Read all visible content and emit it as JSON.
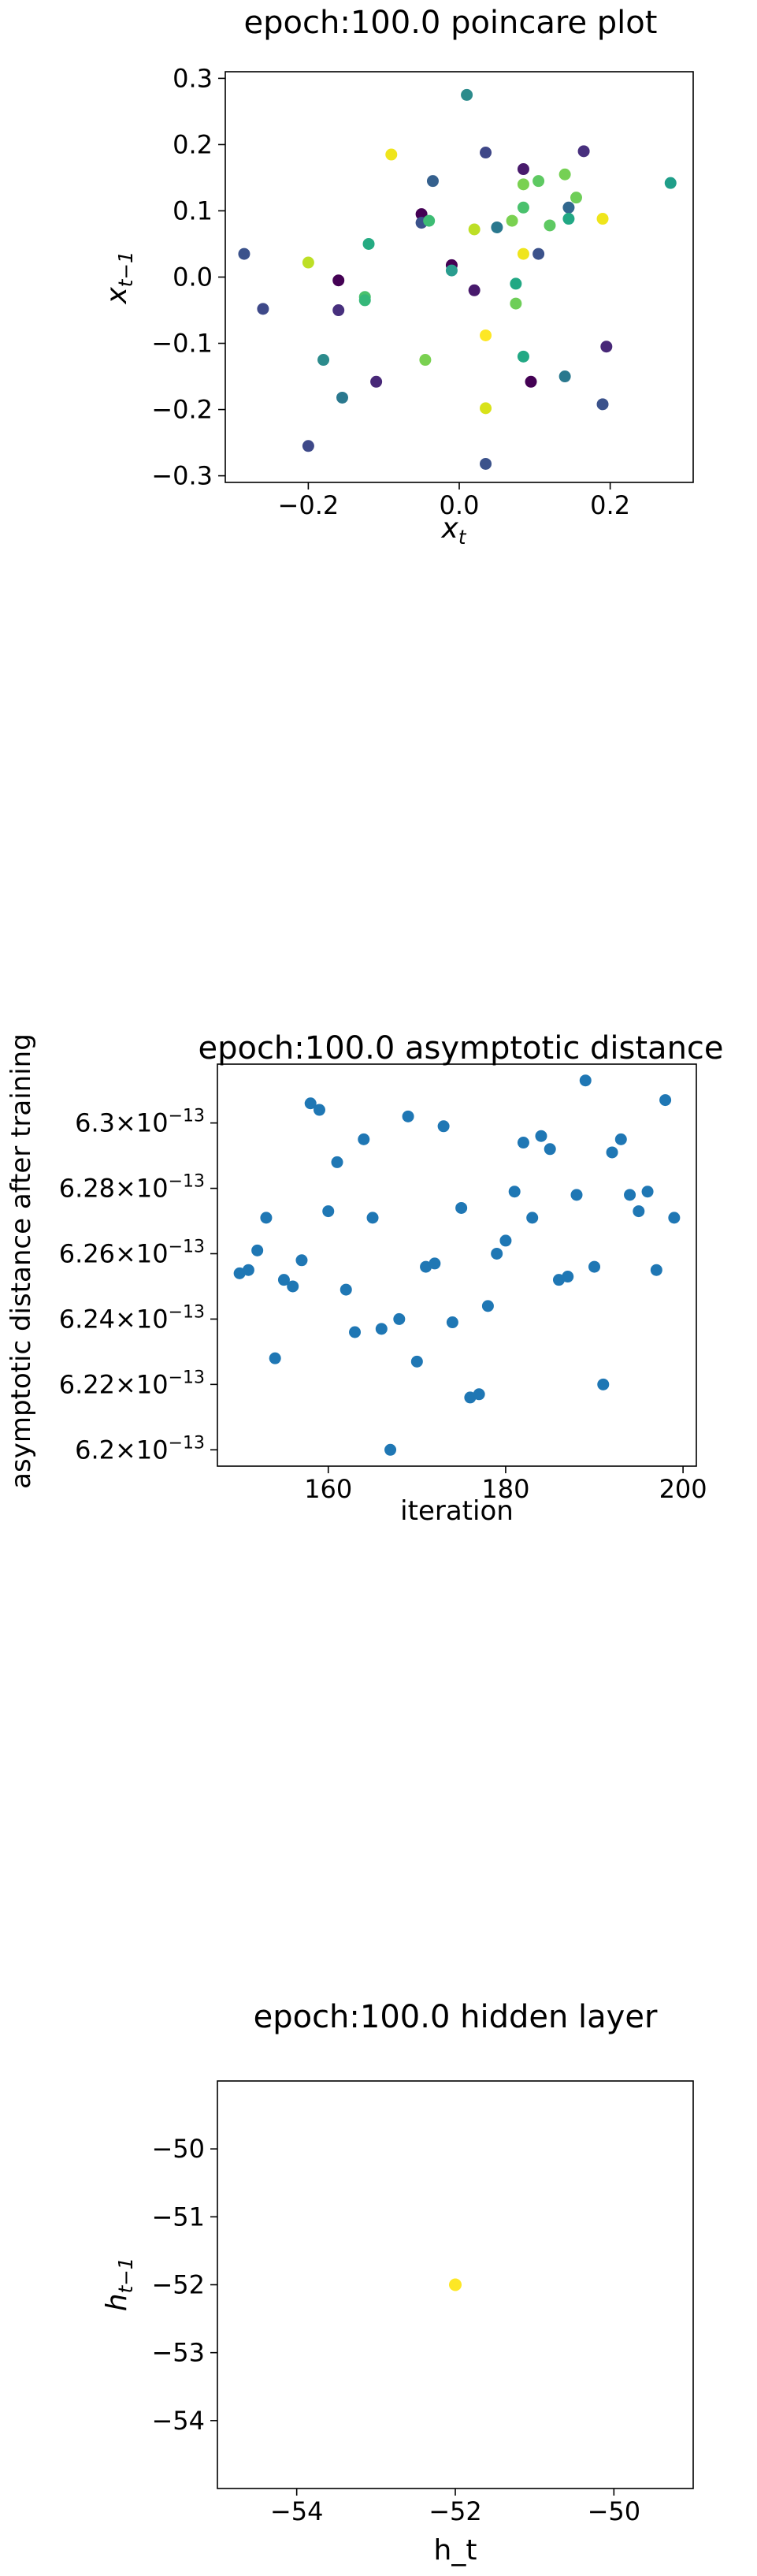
{
  "chart_data": [
    {
      "type": "scatter",
      "title": "epoch:100.0 poincare plot",
      "xlabel_main": "x",
      "xlabel_sub": "t",
      "ylabel_main": "x",
      "ylabel_sub": "t−1",
      "xlim": [
        -0.31,
        0.31
      ],
      "ylim": [
        -0.31,
        0.31
      ],
      "xticks": [
        -0.2,
        0.0,
        0.2
      ],
      "xtick_labels": [
        "−0.2",
        "0.0",
        "0.2"
      ],
      "yticks": [
        -0.3,
        -0.2,
        -0.1,
        0.0,
        0.1,
        0.2,
        0.3
      ],
      "ytick_labels": [
        "−0.3",
        "−0.2",
        "−0.1",
        "0.0",
        "0.1",
        "0.2",
        "0.3"
      ],
      "grid": false,
      "colormap": "viridis",
      "points": [
        {
          "x": 0.01,
          "y": 0.275,
          "c": "#2c8b8c"
        },
        {
          "x": -0.09,
          "y": 0.185,
          "c": "#efe51c"
        },
        {
          "x": 0.035,
          "y": 0.188,
          "c": "#3f4788"
        },
        {
          "x": 0.165,
          "y": 0.19,
          "c": "#472f7d"
        },
        {
          "x": -0.035,
          "y": 0.145,
          "c": "#35608d"
        },
        {
          "x": 0.085,
          "y": 0.163,
          "c": "#481a6c"
        },
        {
          "x": 0.105,
          "y": 0.145,
          "c": "#5ec962"
        },
        {
          "x": 0.085,
          "y": 0.14,
          "c": "#7ad151"
        },
        {
          "x": 0.14,
          "y": 0.155,
          "c": "#75d054"
        },
        {
          "x": 0.155,
          "y": 0.12,
          "c": "#6ece58"
        },
        {
          "x": 0.28,
          "y": 0.142,
          "c": "#1f9e89"
        },
        {
          "x": -0.05,
          "y": 0.095,
          "c": "#440154"
        },
        {
          "x": -0.05,
          "y": 0.082,
          "c": "#3b528b"
        },
        {
          "x": -0.04,
          "y": 0.085,
          "c": "#3dbc74"
        },
        {
          "x": 0.085,
          "y": 0.105,
          "c": "#4ac16d"
        },
        {
          "x": 0.145,
          "y": 0.105,
          "c": "#31688e"
        },
        {
          "x": 0.145,
          "y": 0.088,
          "c": "#22a884"
        },
        {
          "x": 0.12,
          "y": 0.078,
          "c": "#5ec962"
        },
        {
          "x": 0.07,
          "y": 0.085,
          "c": "#7ad151"
        },
        {
          "x": 0.19,
          "y": 0.088,
          "c": "#efe51c"
        },
        {
          "x": -0.12,
          "y": 0.05,
          "c": "#25ab82"
        },
        {
          "x": 0.05,
          "y": 0.075,
          "c": "#2a788e"
        },
        {
          "x": 0.02,
          "y": 0.072,
          "c": "#bddf26"
        },
        {
          "x": 0.085,
          "y": 0.035,
          "c": "#efe51c"
        },
        {
          "x": 0.105,
          "y": 0.035,
          "c": "#3b528b"
        },
        {
          "x": -0.285,
          "y": 0.035,
          "c": "#3b528b"
        },
        {
          "x": -0.2,
          "y": 0.022,
          "c": "#bddf26"
        },
        {
          "x": -0.01,
          "y": 0.018,
          "c": "#440154"
        },
        {
          "x": -0.01,
          "y": 0.01,
          "c": "#2a9d8f"
        },
        {
          "x": 0.075,
          "y": -0.01,
          "c": "#22a884"
        },
        {
          "x": -0.16,
          "y": -0.005,
          "c": "#440154"
        },
        {
          "x": 0.02,
          "y": -0.02,
          "c": "#481a6c"
        },
        {
          "x": -0.125,
          "y": -0.03,
          "c": "#4ac16d"
        },
        {
          "x": -0.125,
          "y": -0.035,
          "c": "#35b779"
        },
        {
          "x": 0.075,
          "y": -0.04,
          "c": "#6ece58"
        },
        {
          "x": -0.26,
          "y": -0.048,
          "c": "#3e4989"
        },
        {
          "x": -0.16,
          "y": -0.05,
          "c": "#472f7d"
        },
        {
          "x": 0.035,
          "y": -0.088,
          "c": "#fde725"
        },
        {
          "x": 0.195,
          "y": -0.105,
          "c": "#482878"
        },
        {
          "x": -0.18,
          "y": -0.125,
          "c": "#2c8b8c"
        },
        {
          "x": -0.045,
          "y": -0.125,
          "c": "#7ad151"
        },
        {
          "x": 0.085,
          "y": -0.12,
          "c": "#22a884"
        },
        {
          "x": -0.11,
          "y": -0.158,
          "c": "#482878"
        },
        {
          "x": 0.095,
          "y": -0.158,
          "c": "#440154"
        },
        {
          "x": 0.14,
          "y": -0.15,
          "c": "#2a788e"
        },
        {
          "x": -0.155,
          "y": -0.182,
          "c": "#2a788e"
        },
        {
          "x": 0.19,
          "y": -0.192,
          "c": "#3b528b"
        },
        {
          "x": 0.035,
          "y": -0.198,
          "c": "#d8e219"
        },
        {
          "x": -0.2,
          "y": -0.255,
          "c": "#3e4989"
        },
        {
          "x": 0.035,
          "y": -0.282,
          "c": "#3b528b"
        }
      ]
    },
    {
      "type": "scatter",
      "title": "epoch:100.0 asymptotic distance",
      "xlabel": "iteration",
      "ylabel": "asymptotic distance after training",
      "xlim": [
        147.5,
        201.5
      ],
      "ylim": [
        6.195e-13,
        6.318e-13
      ],
      "xticks": [
        160,
        180,
        200
      ],
      "xtick_labels": [
        "160",
        "180",
        "200"
      ],
      "yticks": [
        6.2e-13,
        6.22e-13,
        6.24e-13,
        6.26e-13,
        6.28e-13,
        6.3e-13
      ],
      "ytick_mantissas": [
        "6.2",
        "6.22",
        "6.24",
        "6.26",
        "6.28",
        "6.3"
      ],
      "ytick_exp": "−13",
      "grid": false,
      "color": "#1f77b4",
      "x": [
        150,
        151,
        152,
        153,
        154,
        155,
        156,
        157,
        158,
        159,
        160,
        161,
        162,
        163,
        164,
        165,
        166,
        167,
        168,
        169,
        170,
        171,
        172,
        173,
        174,
        175,
        176,
        177,
        178,
        179,
        180,
        181,
        182,
        183,
        184,
        185,
        186,
        187,
        188,
        189,
        190,
        191,
        192,
        193,
        194,
        195,
        196,
        197,
        198,
        199
      ],
      "y": [
        6.254e-13,
        6.255e-13,
        6.261e-13,
        6.271e-13,
        6.228e-13,
        6.252e-13,
        6.25e-13,
        6.258e-13,
        6.306e-13,
        6.304e-13,
        6.273e-13,
        6.288e-13,
        6.249e-13,
        6.236e-13,
        6.295e-13,
        6.271e-13,
        6.237e-13,
        6.2e-13,
        6.24e-13,
        6.302e-13,
        6.227e-13,
        6.256e-13,
        6.257e-13,
        6.299e-13,
        6.239e-13,
        6.274e-13,
        6.216e-13,
        6.217e-13,
        6.244e-13,
        6.26e-13,
        6.264e-13,
        6.279e-13,
        6.294e-13,
        6.271e-13,
        6.296e-13,
        6.292e-13,
        6.252e-13,
        6.253e-13,
        6.278e-13,
        6.313e-13,
        6.256e-13,
        6.22e-13,
        6.291e-13,
        6.295e-13,
        6.278e-13,
        6.273e-13,
        6.279e-13,
        6.255e-13,
        6.307e-13,
        6.271e-13
      ]
    },
    {
      "type": "scatter",
      "title": "epoch:100.0 hidden layer",
      "xlabel": "h_t",
      "ylabel_main": "h",
      "ylabel_sub": "t−1",
      "xlim": [
        -55,
        -49
      ],
      "ylim": [
        -55,
        -49
      ],
      "xticks": [
        -54,
        -52,
        -50
      ],
      "xtick_labels": [
        "−54",
        "−52",
        "−50"
      ],
      "yticks": [
        -54,
        -53,
        -52,
        -51,
        -50
      ],
      "ytick_labels": [
        "−54",
        "−53",
        "−52",
        "−51",
        "−50"
      ],
      "grid": false,
      "points": [
        {
          "x": -52,
          "y": -52,
          "c": "#fde725"
        }
      ]
    }
  ]
}
